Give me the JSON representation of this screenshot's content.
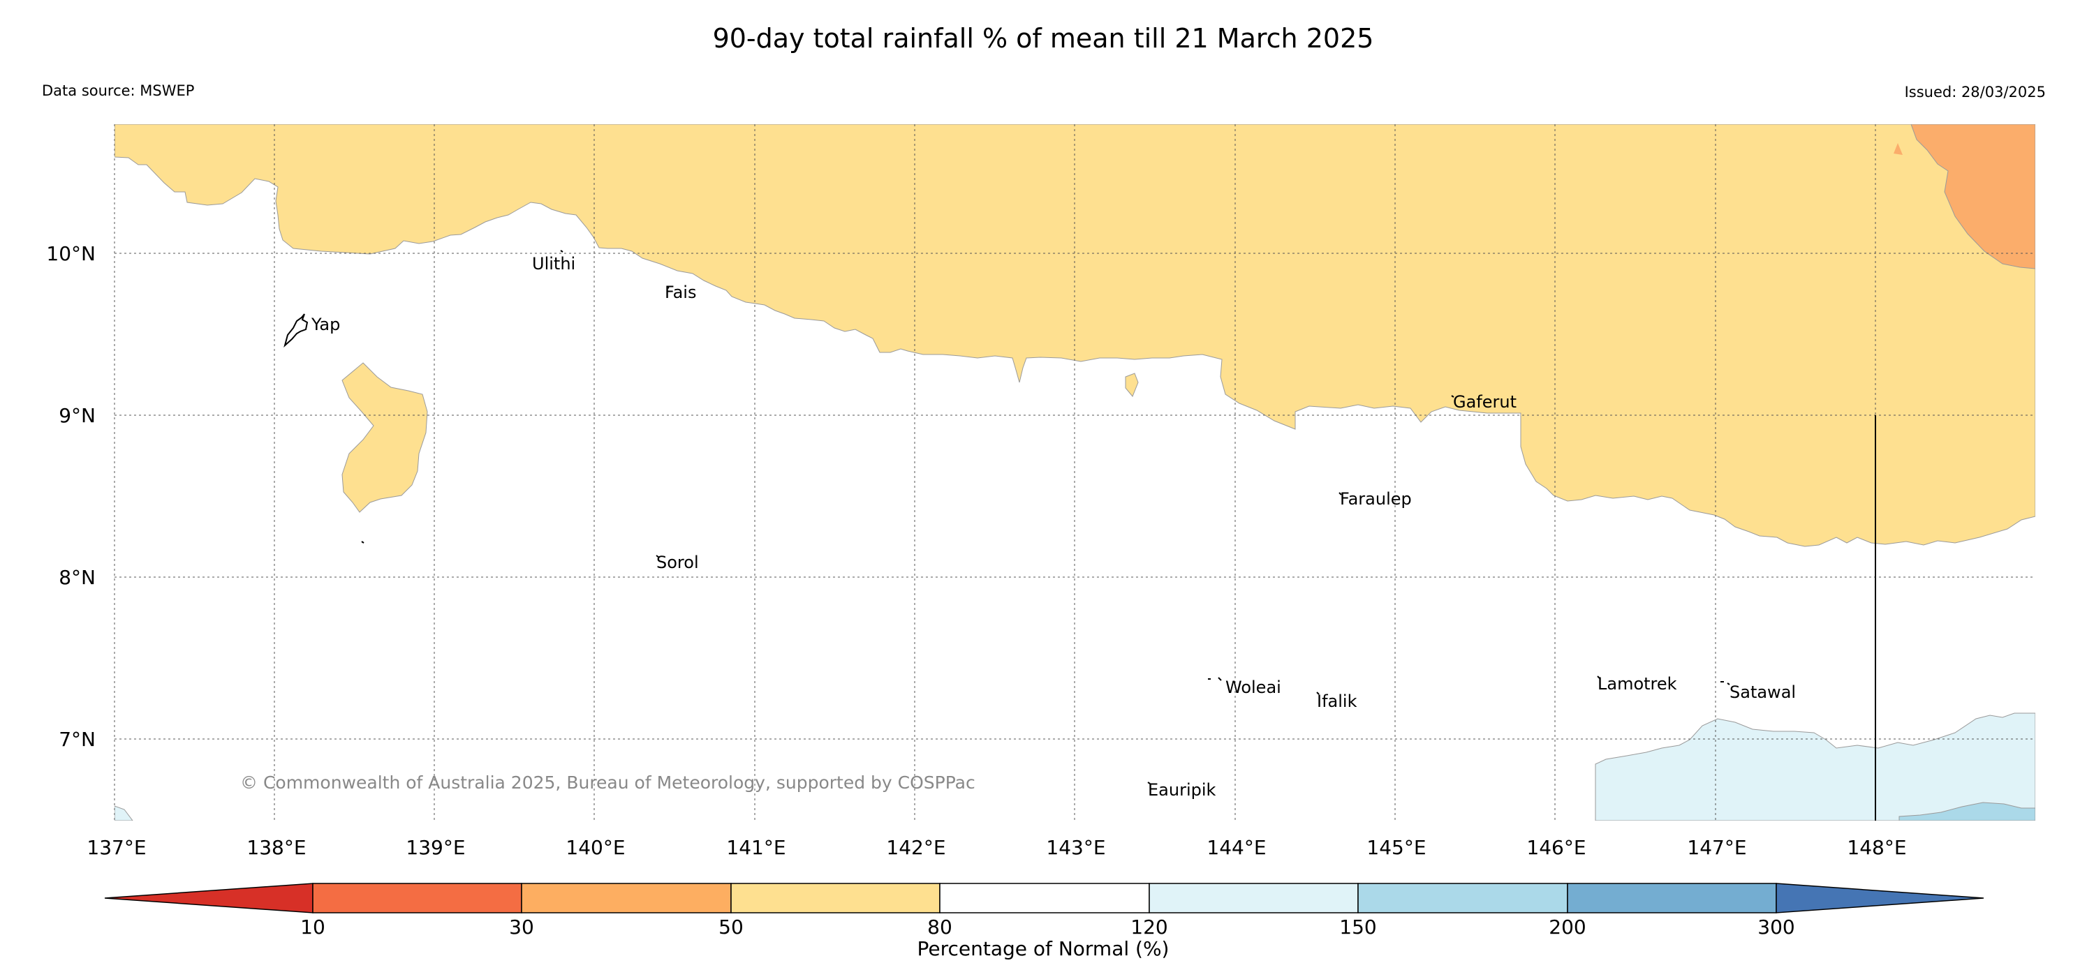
{
  "title": "90-day total rainfall % of mean till 21 March 2025",
  "source_text": "Data source: MSWEP",
  "issued_text": "Issued: 28/03/2025",
  "copyright": "© Commonwealth of Australia 2025, Bureau of Meteorology, supported by COSPPac",
  "map": {
    "extent": {
      "lon": [
        137,
        149
      ],
      "lat": [
        6.5,
        10.8
      ]
    },
    "lon_ticks": [
      "137°E",
      "138°E",
      "139°E",
      "140°E",
      "141°E",
      "142°E",
      "143°E",
      "144°E",
      "145°E",
      "146°E",
      "147°E",
      "148°E"
    ],
    "lat_ticks": [
      "10°N",
      "9°N",
      "8°N",
      "7°N"
    ],
    "gridlines": true,
    "islands": [
      {
        "name": "Yap",
        "lon": 138.23,
        "lat": 9.55
      },
      {
        "name": "Ulithi",
        "lon": 139.78,
        "lat": 9.92
      },
      {
        "name": "Fais",
        "lon": 140.52,
        "lat": 9.75
      },
      {
        "name": "Gaferut",
        "lon": 145.36,
        "lat": 9.07
      },
      {
        "name": "Faraulep",
        "lon": 144.56,
        "lat": 8.47
      },
      {
        "name": "Sorol",
        "lon": 140.38,
        "lat": 8.08
      },
      {
        "name": "Woleai",
        "lon": 143.93,
        "lat": 7.32
      },
      {
        "name": "Ifalik",
        "lon": 144.46,
        "lat": 7.23
      },
      {
        "name": "Lamotrek",
        "lon": 146.27,
        "lat": 7.34
      },
      {
        "name": "Satawal",
        "lon": 147.08,
        "lat": 7.29
      },
      {
        "name": "Eauripik",
        "lon": 143.47,
        "lat": 6.64
      }
    ],
    "fill_colors": {
      "30-50": "#fbad6b",
      "50-80": "#fee090",
      "80-120": "#ffffff",
      "120-150": "#e0f3f8",
      "150-200": "#abd9e9"
    }
  },
  "colorbar": {
    "label": "Percentage of Normal (%)",
    "ticks": [
      "10",
      "30",
      "50",
      "80",
      "120",
      "150",
      "200",
      "300"
    ],
    "colors": [
      "#d73027",
      "#f46d43",
      "#fdae61",
      "#fee090",
      "#ffffff",
      "#e0f3f8",
      "#abd9e9",
      "#74add1",
      "#4575b4"
    ]
  }
}
